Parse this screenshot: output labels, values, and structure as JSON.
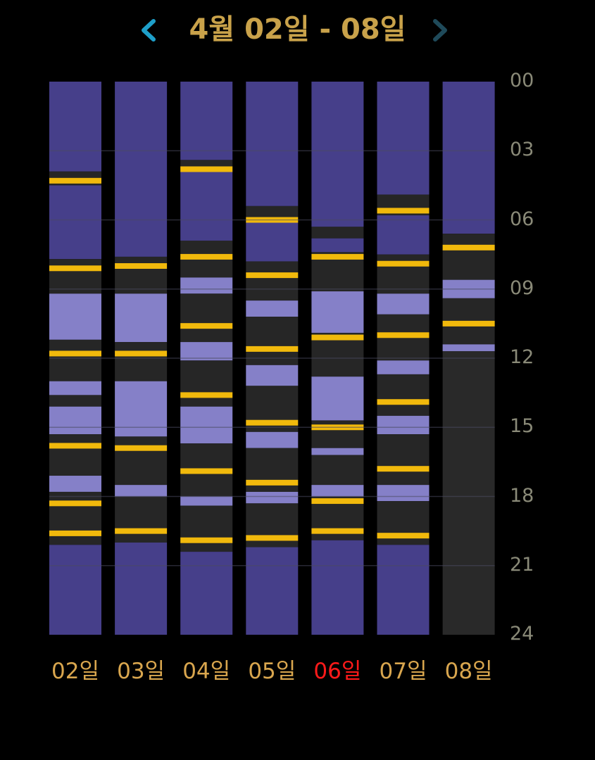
{
  "header": {
    "title": "4월 02일 - 08일",
    "prev_icon": "chevron-left-icon",
    "next_icon": "chevron-right-icon"
  },
  "colors": {
    "title": "#c9a24a",
    "prev_arrow": "#1e9fc9",
    "next_arrow": "#1f4a5a",
    "deep_sleep": "#463f8a",
    "light_sleep": "#8580c8",
    "awake": "#262626",
    "event_marker": "#f1b90c",
    "empty": "#292929",
    "hour_label": "#8a8a78",
    "day_label": "#d9a64e",
    "today_label": "#ff1a1a",
    "gridline": "#4a4a60"
  },
  "hour_labels": [
    "00",
    "03",
    "06",
    "09",
    "12",
    "15",
    "18",
    "21",
    "24"
  ],
  "chart_data": {
    "type": "bar",
    "orientation": "vertical-timeline",
    "unit": "hours",
    "ylim": [
      0,
      24
    ],
    "categories": [
      "02일",
      "03일",
      "04일",
      "05일",
      "06일",
      "07일",
      "08일"
    ],
    "highlight_category": "06일",
    "days": [
      {
        "label": "02일",
        "segments": [
          [
            0,
            3.9,
            "deep"
          ],
          [
            3.9,
            4.5,
            "awake"
          ],
          [
            4.5,
            7.7,
            "deep"
          ],
          [
            7.7,
            9.2,
            "awake"
          ],
          [
            9.2,
            11.2,
            "light"
          ],
          [
            11.2,
            13.0,
            "awake"
          ],
          [
            13.0,
            13.6,
            "light"
          ],
          [
            13.6,
            14.1,
            "awake"
          ],
          [
            14.1,
            15.3,
            "light"
          ],
          [
            15.3,
            17.1,
            "awake"
          ],
          [
            17.1,
            17.8,
            "light"
          ],
          [
            17.8,
            20.1,
            "awake"
          ],
          [
            20.1,
            24,
            "deep"
          ]
        ],
        "markers": [
          4.3,
          8.1,
          11.8,
          15.8,
          18.3,
          19.6
        ]
      },
      {
        "label": "03일",
        "segments": [
          [
            0,
            7.6,
            "deep"
          ],
          [
            7.6,
            9.2,
            "awake"
          ],
          [
            9.2,
            11.3,
            "light"
          ],
          [
            11.3,
            13.0,
            "awake"
          ],
          [
            13.0,
            15.4,
            "light"
          ],
          [
            15.4,
            17.5,
            "awake"
          ],
          [
            17.5,
            18.0,
            "light"
          ],
          [
            18.0,
            20.0,
            "awake"
          ],
          [
            20.0,
            24,
            "deep"
          ]
        ],
        "markers": [
          8.0,
          11.8,
          15.9,
          19.5
        ]
      },
      {
        "label": "04일",
        "segments": [
          [
            0,
            3.4,
            "deep"
          ],
          [
            3.4,
            3.9,
            "awake"
          ],
          [
            3.9,
            6.9,
            "deep"
          ],
          [
            6.9,
            8.5,
            "awake"
          ],
          [
            8.5,
            9.2,
            "light"
          ],
          [
            9.2,
            11.3,
            "awake"
          ],
          [
            11.3,
            12.1,
            "light"
          ],
          [
            12.1,
            14.1,
            "awake"
          ],
          [
            14.1,
            15.7,
            "light"
          ],
          [
            15.7,
            18.0,
            "awake"
          ],
          [
            18.0,
            18.4,
            "light"
          ],
          [
            18.4,
            20.4,
            "awake"
          ],
          [
            20.4,
            24,
            "deep"
          ]
        ],
        "markers": [
          3.8,
          7.6,
          10.6,
          13.6,
          16.9,
          19.9
        ]
      },
      {
        "label": "05일",
        "segments": [
          [
            0,
            5.4,
            "deep"
          ],
          [
            5.4,
            6.0,
            "awake"
          ],
          [
            6.0,
            7.8,
            "deep"
          ],
          [
            7.8,
            9.5,
            "awake"
          ],
          [
            9.5,
            10.2,
            "light"
          ],
          [
            10.2,
            12.3,
            "awake"
          ],
          [
            12.3,
            13.2,
            "light"
          ],
          [
            13.2,
            15.2,
            "awake"
          ],
          [
            15.2,
            15.9,
            "light"
          ],
          [
            15.9,
            17.8,
            "awake"
          ],
          [
            17.8,
            18.3,
            "light"
          ],
          [
            18.3,
            20.2,
            "awake"
          ],
          [
            20.2,
            24,
            "deep"
          ]
        ],
        "markers": [
          6.0,
          8.4,
          11.6,
          14.8,
          17.4,
          19.8
        ]
      },
      {
        "label": "06일",
        "segments": [
          [
            0,
            6.3,
            "deep"
          ],
          [
            6.3,
            6.8,
            "awake"
          ],
          [
            6.8,
            7.4,
            "deep"
          ],
          [
            7.4,
            9.1,
            "awake"
          ],
          [
            9.1,
            10.9,
            "light"
          ],
          [
            10.9,
            12.8,
            "awake"
          ],
          [
            12.8,
            14.7,
            "light"
          ],
          [
            14.7,
            15.9,
            "awake"
          ],
          [
            15.9,
            16.2,
            "light"
          ],
          [
            16.2,
            17.5,
            "awake"
          ],
          [
            17.5,
            18.0,
            "light"
          ],
          [
            18.0,
            19.9,
            "awake"
          ],
          [
            19.9,
            24,
            "deep"
          ]
        ],
        "markers": [
          7.6,
          11.1,
          15.0,
          18.2,
          19.5
        ]
      },
      {
        "label": "07일",
        "segments": [
          [
            0,
            4.9,
            "deep"
          ],
          [
            4.9,
            5.8,
            "awake"
          ],
          [
            5.8,
            7.5,
            "deep"
          ],
          [
            7.5,
            9.2,
            "awake"
          ],
          [
            9.2,
            10.1,
            "light"
          ],
          [
            10.1,
            12.1,
            "awake"
          ],
          [
            12.1,
            12.7,
            "light"
          ],
          [
            12.7,
            14.5,
            "awake"
          ],
          [
            14.5,
            15.3,
            "light"
          ],
          [
            15.3,
            17.5,
            "awake"
          ],
          [
            17.5,
            18.2,
            "light"
          ],
          [
            18.2,
            20.1,
            "awake"
          ],
          [
            20.1,
            24,
            "deep"
          ]
        ],
        "markers": [
          5.6,
          7.9,
          11.0,
          13.9,
          16.8,
          19.7
        ]
      },
      {
        "label": "08일",
        "segments": [
          [
            0,
            6.6,
            "deep"
          ],
          [
            6.6,
            8.6,
            "awake"
          ],
          [
            8.6,
            9.4,
            "light"
          ],
          [
            9.4,
            11.4,
            "awake"
          ],
          [
            11.4,
            11.7,
            "light"
          ],
          [
            11.7,
            24,
            "empty"
          ]
        ],
        "markers": [
          7.2,
          10.5
        ]
      }
    ]
  }
}
